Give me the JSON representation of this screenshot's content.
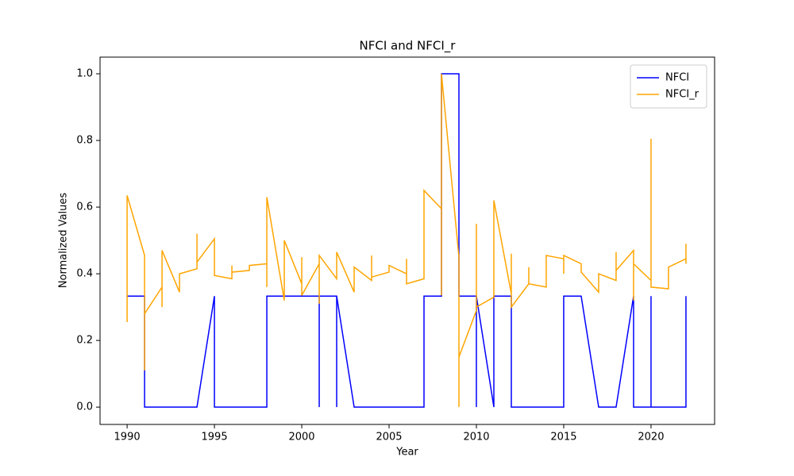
{
  "chart_data": {
    "type": "line",
    "title": "NFCI and NFCI_r",
    "xlabel": "Year",
    "ylabel": "Normalized Values",
    "x": [
      1990,
      1990,
      1990,
      1991,
      1991,
      1991,
      1992,
      1992,
      1992,
      1993,
      1993,
      1993,
      1994,
      1994,
      1994,
      1995,
      1995,
      1995,
      1996,
      1996,
      1996,
      1997,
      1997,
      1997,
      1998,
      1998,
      1998,
      1999,
      1999,
      1999,
      2000,
      2000,
      2000,
      2001,
      2001,
      2001,
      2002,
      2002,
      2002,
      2003,
      2003,
      2003,
      2004,
      2004,
      2004,
      2005,
      2005,
      2005,
      2006,
      2006,
      2006,
      2007,
      2007,
      2007,
      2008,
      2008,
      2008,
      2009,
      2009,
      2009,
      2010,
      2010,
      2010,
      2011,
      2011,
      2011,
      2012,
      2012,
      2012,
      2013,
      2013,
      2013,
      2014,
      2014,
      2014,
      2015,
      2015,
      2015,
      2016,
      2016,
      2016,
      2017,
      2017,
      2017,
      2018,
      2018,
      2018,
      2019,
      2019,
      2019,
      2020,
      2020,
      2020,
      2021,
      2021,
      2021,
      2022,
      2022,
      2022
    ],
    "series": [
      {
        "name": "NFCI",
        "color": "#0000ff",
        "values": [
          0.333,
          0.333,
          0.333,
          0.333,
          0.11,
          0,
          0,
          0,
          0,
          0,
          0,
          0,
          0,
          0,
          0,
          0.333,
          0.3,
          0,
          0,
          0,
          0,
          0,
          0,
          0,
          0,
          0.333,
          0.333,
          0.333,
          0.333,
          0.333,
          0.333,
          0.333,
          0.333,
          0.333,
          0,
          0.333,
          0.333,
          0,
          0.333,
          0,
          0,
          0,
          0,
          0,
          0,
          0,
          0,
          0,
          0,
          0,
          0,
          0,
          0.333,
          0.333,
          0.333,
          1,
          1,
          1,
          0.333,
          0.333,
          0.333,
          0,
          0.333,
          0,
          0.333,
          0.333,
          0.333,
          0.28,
          0,
          0,
          0,
          0,
          0,
          0,
          0,
          0,
          0.333,
          0.333,
          0.333,
          0.333,
          0.333,
          0,
          0,
          0,
          0,
          0,
          0,
          0.333,
          0,
          0,
          0,
          0.333,
          0,
          0,
          0,
          0,
          0,
          0.333,
          0.333
        ]
      },
      {
        "name": "NFCI_r",
        "color": "#ffa500",
        "values": [
          0.255,
          0.255,
          0.635,
          0.455,
          0.11,
          0.28,
          0.36,
          0.3,
          0.47,
          0.345,
          0.345,
          0.4,
          0.415,
          0.52,
          0.435,
          0.505,
          0.505,
          0.395,
          0.385,
          0.425,
          0.405,
          0.41,
          0.41,
          0.425,
          0.43,
          0.36,
          0.63,
          0.32,
          0.32,
          0.5,
          0.37,
          0.45,
          0.335,
          0.43,
          0.31,
          0.455,
          0.385,
          0.385,
          0.465,
          0.345,
          0.345,
          0.42,
          0.38,
          0.455,
          0.39,
          0.405,
          0.405,
          0.425,
          0.4,
          0.445,
          0.37,
          0.385,
          0.385,
          0.65,
          0.595,
          0.335,
          1,
          0.45,
          0,
          0.15,
          0.29,
          0.55,
          0.3,
          0.33,
          0.33,
          0.62,
          0.34,
          0.46,
          0.3,
          0.37,
          0.42,
          0.37,
          0.36,
          0.36,
          0.455,
          0.445,
          0.4,
          0.455,
          0.43,
          0.43,
          0.405,
          0.345,
          0.345,
          0.4,
          0.38,
          0.465,
          0.41,
          0.47,
          0.32,
          0.43,
          0.38,
          0.805,
          0.36,
          0.355,
          0.355,
          0.42,
          0.445,
          0.49,
          0.43
        ]
      }
    ],
    "xlim": [
      1988.45,
      2023.64
    ],
    "ylim": [
      -0.052,
      1.05
    ],
    "xticks": [
      1990,
      1995,
      2000,
      2005,
      2010,
      2015,
      2020
    ],
    "yticks": [
      {
        "value": 0,
        "label": "0.0"
      },
      0.2,
      0.4,
      0.6,
      0.8,
      {
        "value": 1,
        "label": "1.0"
      }
    ],
    "legend": "upper right"
  }
}
